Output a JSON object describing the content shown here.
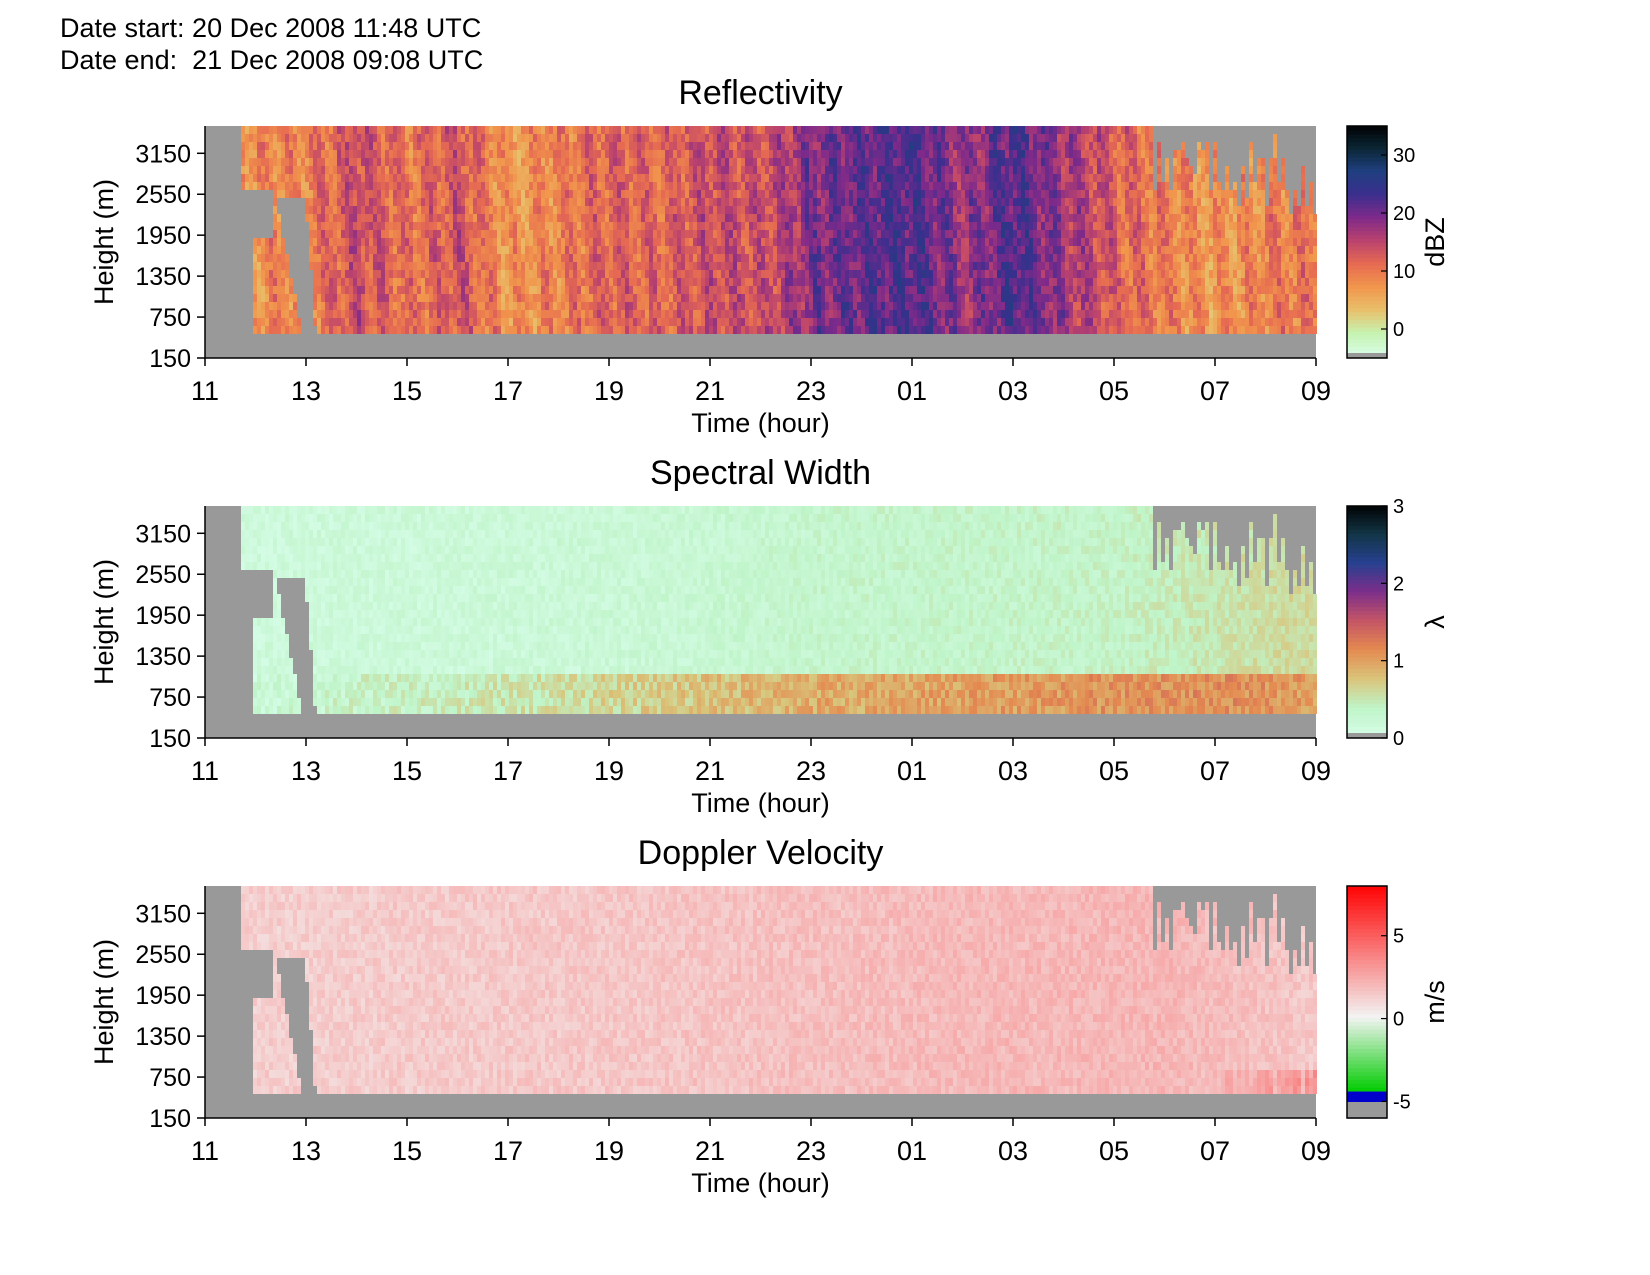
{
  "header": {
    "date_start": "Date start: 20 Dec 2008 11:48 UTC",
    "date_end": "Date end:  21 Dec 2008 09:08 UTC"
  },
  "colors": {
    "nodata": "#999999",
    "reflectivity_cmap": [
      "#d9fde9",
      "#c6f3b1",
      "#e8c06b",
      "#f1964c",
      "#e66a52",
      "#ba426e",
      "#7e2a8a",
      "#3b2f8e",
      "#1e3f7f",
      "#0b2533",
      "#000000"
    ],
    "width_cmap": [
      "#d6fde8",
      "#bff4c8",
      "#d9c47a",
      "#e48a50",
      "#c45566",
      "#7b2e8a",
      "#27408f",
      "#123545",
      "#000000"
    ],
    "velocity_cmap": {
      "neg_far": "#0000cc",
      "neg": "#00cc00",
      "zero": "#f3f3f3",
      "pos": "#ff0000"
    }
  },
  "chart_data": [
    {
      "type": "heatmap",
      "title": "Reflectivity",
      "xlabel": "Time (hour)",
      "ylabel": "Height (m)",
      "x_ticks": [
        "11",
        "13",
        "15",
        "17",
        "19",
        "21",
        "23",
        "01",
        "03",
        "05",
        "07",
        "09"
      ],
      "y_ticks": [
        "150",
        "750",
        "1350",
        "1950",
        "2550",
        "3150"
      ],
      "xlim": [
        11,
        33
      ],
      "ylim": [
        150,
        3550
      ],
      "colorbar": {
        "label": "dBZ",
        "ticks": [
          "0",
          "10",
          "20",
          "30"
        ],
        "range": [
          -5,
          35
        ]
      },
      "grid": false,
      "data_bottom_m": 540,
      "intensity_profile": [
        {
          "t": 11.8,
          "v": 8
        },
        {
          "t": 13,
          "v": 9
        },
        {
          "t": 14,
          "v": 14
        },
        {
          "t": 15,
          "v": 10
        },
        {
          "t": 16,
          "v": 13
        },
        {
          "t": 17,
          "v": 7
        },
        {
          "t": 18,
          "v": 9
        },
        {
          "t": 19,
          "v": 12
        },
        {
          "t": 20,
          "v": 11
        },
        {
          "t": 21,
          "v": 14
        },
        {
          "t": 22,
          "v": 13
        },
        {
          "t": 23,
          "v": 19
        },
        {
          "t": 24,
          "v": 21
        },
        {
          "t": 25,
          "v": 22
        },
        {
          "t": 26,
          "v": 17
        },
        {
          "t": 27,
          "v": 22
        },
        {
          "t": 28,
          "v": 17
        },
        {
          "t": 29,
          "v": 12
        },
        {
          "t": 30,
          "v": 9
        },
        {
          "t": 31,
          "v": 7
        },
        {
          "t": 32,
          "v": 9
        },
        {
          "t": 33,
          "v": 10
        }
      ]
    },
    {
      "type": "heatmap",
      "title": "Spectral Width",
      "xlabel": "Time (hour)",
      "ylabel": "Height (m)",
      "x_ticks": [
        "11",
        "13",
        "15",
        "17",
        "19",
        "21",
        "23",
        "01",
        "03",
        "05",
        "07",
        "09"
      ],
      "y_ticks": [
        "150",
        "750",
        "1350",
        "1950",
        "2550",
        "3150"
      ],
      "xlim": [
        11,
        33
      ],
      "ylim": [
        150,
        3550
      ],
      "colorbar": {
        "label": "λ",
        "ticks": [
          "0",
          "1",
          "2",
          "3"
        ],
        "range": [
          0,
          3
        ]
      },
      "grid": false,
      "data_bottom_m": 540,
      "intensity_profile": [
        {
          "t": 11.8,
          "v": 0.15
        },
        {
          "t": 19,
          "v": 0.2
        },
        {
          "t": 23,
          "v": 0.3
        },
        {
          "t": 29,
          "v": 0.35
        },
        {
          "t": 31,
          "v": 0.5
        },
        {
          "t": 33,
          "v": 0.6
        }
      ],
      "low_band_profile": [
        {
          "t": 11.8,
          "v": 0.2
        },
        {
          "t": 19,
          "v": 0.6
        },
        {
          "t": 23,
          "v": 0.9
        },
        {
          "t": 27,
          "v": 1.0
        },
        {
          "t": 31,
          "v": 1.1
        },
        {
          "t": 33,
          "v": 1.0
        }
      ]
    },
    {
      "type": "heatmap",
      "title": "Doppler Velocity",
      "xlabel": "Time (hour)",
      "ylabel": "Height (m)",
      "x_ticks": [
        "11",
        "13",
        "15",
        "17",
        "19",
        "21",
        "23",
        "01",
        "03",
        "05",
        "07",
        "09"
      ],
      "y_ticks": [
        "150",
        "750",
        "1350",
        "1950",
        "2550",
        "3150"
      ],
      "xlim": [
        11,
        33
      ],
      "ylim": [
        150,
        3550
      ],
      "colorbar": {
        "label": "m/s",
        "ticks": [
          "-5",
          "0",
          "5"
        ],
        "range": [
          -6,
          8
        ]
      },
      "grid": false,
      "data_bottom_m": 540,
      "intensity_profile": [
        {
          "t": 11.8,
          "v": 1.2
        },
        {
          "t": 20,
          "v": 1.5
        },
        {
          "t": 26,
          "v": 1.9
        },
        {
          "t": 30,
          "v": 2.0
        },
        {
          "t": 33,
          "v": 1.4
        }
      ]
    }
  ]
}
